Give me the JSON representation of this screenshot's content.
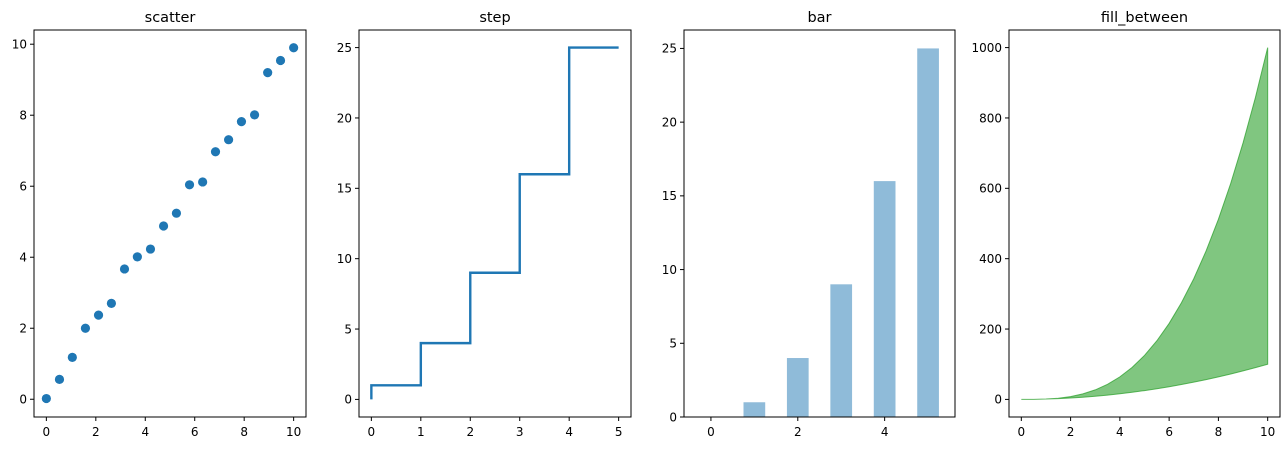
{
  "chart_data": [
    {
      "type": "scatter",
      "title": "scatter",
      "xlabel": "",
      "ylabel": "",
      "xlim": [
        -0.5,
        10.5
      ],
      "ylim": [
        -0.5,
        10.4
      ],
      "xticks": [
        0,
        2,
        4,
        6,
        8,
        10
      ],
      "yticks": [
        0,
        2,
        4,
        6,
        8,
        10
      ],
      "grid": false,
      "color": "#1f77b4",
      "x": [
        0,
        0.53,
        1.05,
        1.58,
        2.11,
        2.63,
        3.16,
        3.68,
        4.21,
        4.74,
        5.26,
        5.79,
        6.32,
        6.84,
        7.37,
        7.89,
        8.42,
        8.95,
        9.47,
        10
      ],
      "y": [
        0.02,
        0.56,
        1.18,
        2.0,
        2.37,
        2.7,
        3.67,
        4.01,
        4.23,
        4.88,
        5.24,
        6.04,
        6.12,
        6.97,
        7.31,
        7.82,
        8.01,
        9.2,
        9.54,
        9.9
      ]
    },
    {
      "type": "line",
      "title": "step",
      "xlabel": "",
      "ylabel": "",
      "drawstyle": "steps-pre",
      "xlim": [
        -0.25,
        5.25
      ],
      "ylim": [
        -1.25,
        26.25
      ],
      "xticks": [
        0,
        1,
        2,
        3,
        4,
        5
      ],
      "yticks": [
        0,
        5,
        10,
        15,
        20,
        25
      ],
      "grid": false,
      "color": "#1f77b4",
      "x": [
        0,
        1,
        2,
        3,
        4,
        5
      ],
      "y": [
        0,
        1,
        4,
        9,
        16,
        25
      ]
    },
    {
      "type": "bar",
      "title": "bar",
      "xlabel": "",
      "ylabel": "",
      "xlim": [
        -0.62,
        5.62
      ],
      "ylim": [
        0,
        26.25
      ],
      "xticks": [
        0,
        2,
        4
      ],
      "yticks": [
        0,
        5,
        10,
        15,
        20,
        25
      ],
      "grid": false,
      "color": "#1f77b4",
      "alpha": 0.5,
      "bar_width": 0.5,
      "x": [
        0,
        1,
        2,
        3,
        4,
        5
      ],
      "values": [
        0,
        1,
        4,
        9,
        16,
        25
      ]
    },
    {
      "type": "area",
      "title": "fill_between",
      "xlabel": "",
      "ylabel": "",
      "xlim": [
        -0.5,
        10.5
      ],
      "ylim": [
        -50,
        1050
      ],
      "xticks": [
        0,
        2,
        4,
        6,
        8,
        10
      ],
      "yticks": [
        0,
        200,
        400,
        600,
        800,
        1000
      ],
      "grid": false,
      "color": "#2ca02c",
      "alpha": 0.6,
      "x": [
        0,
        0.5,
        1,
        1.5,
        2,
        2.5,
        3,
        3.5,
        4,
        4.5,
        5,
        5.5,
        6,
        6.5,
        7,
        7.5,
        8,
        8.5,
        9,
        9.5,
        10
      ],
      "y_lower": [
        0,
        0.25,
        1,
        2.25,
        4,
        6.25,
        9,
        12.25,
        16,
        20.25,
        25,
        30.25,
        36,
        42.25,
        49,
        56.25,
        64,
        72.25,
        81,
        90.25,
        100
      ],
      "y_upper": [
        0,
        0.13,
        1,
        3.38,
        8,
        15.63,
        27,
        42.88,
        64,
        91.13,
        125,
        166.38,
        216,
        274.63,
        343,
        421.88,
        512,
        614.13,
        729,
        857.38,
        1000
      ]
    }
  ]
}
